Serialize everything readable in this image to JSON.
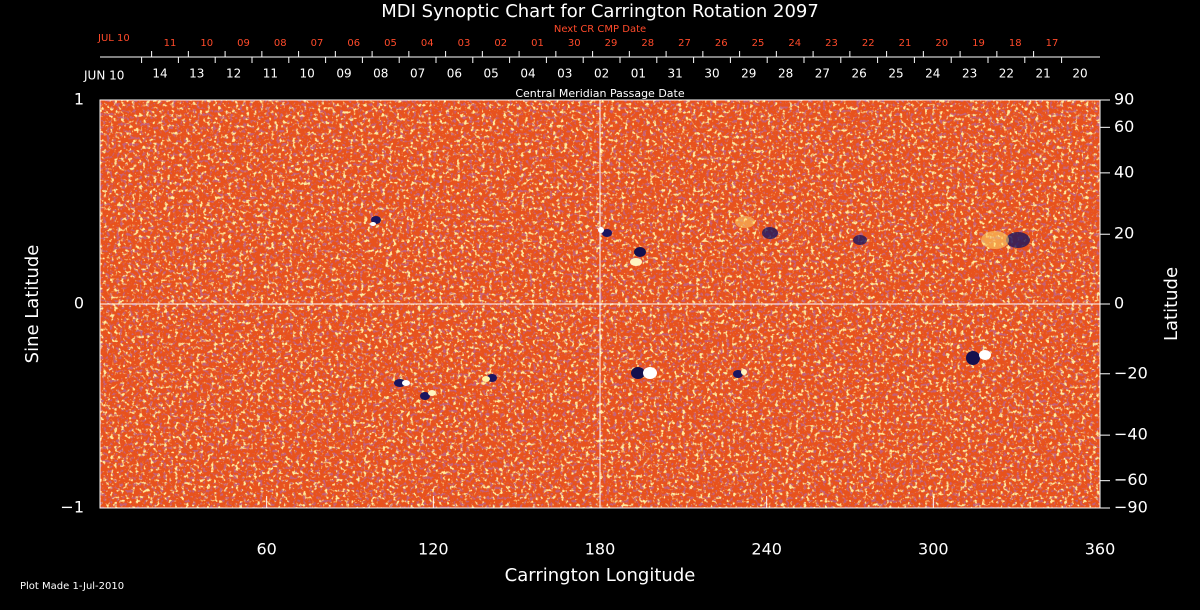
{
  "chart_data": {
    "type": "synoptic-map",
    "title": "MDI Synoptic Chart for Carrington Rotation 2097",
    "x_label": "Carrington Longitude",
    "y_label": "Sine Latitude",
    "y2_label": "Latitude",
    "top_label": "Central Meridian Passage Date",
    "top2_label": "Next CR CMP Date",
    "footnote": "Plot Made  1-Jul-2010",
    "xlim": [
      0,
      360
    ],
    "xticks": [
      60,
      120,
      180,
      240,
      300,
      360
    ],
    "ylim": [
      -1,
      1
    ],
    "yticks": [
      {
        "value": -1,
        "label": "−1"
      },
      0,
      1
    ],
    "y2lim": [
      -90,
      90
    ],
    "y2scale": "sine",
    "y2ticks": [
      {
        "value": -90,
        "label": "−90"
      },
      {
        "value": -60,
        "label": "−60"
      },
      {
        "value": -40,
        "label": "−40"
      },
      {
        "value": -20,
        "label": "−20"
      },
      0,
      20,
      40,
      60,
      90
    ],
    "cmp_start": "JUN 10",
    "cmp_dates": [
      "14",
      "13",
      "12",
      "11",
      "10",
      "09",
      "08",
      "07",
      "06",
      "05",
      "04",
      "03",
      "02",
      "01",
      "31",
      "30",
      "29",
      "28",
      "27",
      "26",
      "25",
      "24",
      "23",
      "22",
      "21",
      "20"
    ],
    "next_cmp_start": "JUL 10",
    "next_cmp_dates": [
      "11",
      "10",
      "09",
      "08",
      "07",
      "06",
      "05",
      "04",
      "03",
      "02",
      "01",
      "30",
      "29",
      "28",
      "27",
      "26",
      "25",
      "24",
      "23",
      "22",
      "21",
      "20",
      "19",
      "18",
      "17"
    ],
    "next_color": "#ff4a2a",
    "map_color": "#e8521c",
    "crosshair": [
      180,
      0
    ]
  }
}
